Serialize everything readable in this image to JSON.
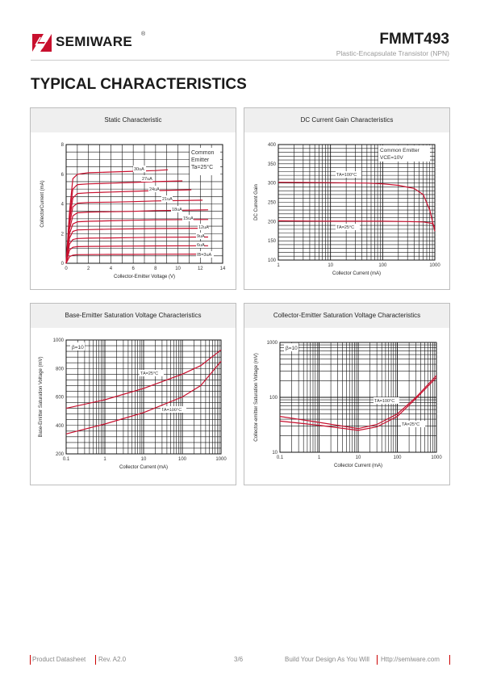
{
  "header": {
    "brand": "SEMIWARE",
    "registered": "®",
    "part_number": "FMMT493",
    "description": "Plastic-Encapsulate Transistor (NPN)"
  },
  "section_title": "TYPICAL CHARACTERISTICS",
  "colors": {
    "brand_red": "#c8102e",
    "curve_red": "#c8102e",
    "panel_header": "#efefef"
  },
  "chart_data": [
    {
      "type": "line",
      "title": "Static Characteristic",
      "xlabel": "Collector-Emitter Voltage (V)",
      "ylabel": "CollectorCurrent (mA)",
      "xlim": [
        0,
        14
      ],
      "ylim": [
        0,
        8
      ],
      "x_ticks": [
        "0",
        "2",
        "4",
        "6",
        "8",
        "10",
        "12",
        "14"
      ],
      "y_ticks": [
        "0",
        "2",
        "4",
        "6",
        "8"
      ],
      "annotation": [
        "Common",
        "Emitter",
        "Ta=25°C"
      ],
      "series": [
        {
          "name": "30uA",
          "x": [
            0,
            0.3,
            0.6,
            1.0,
            2,
            4,
            6,
            8,
            9.1
          ],
          "values": [
            0,
            3.5,
            5.7,
            6.0,
            6.1,
            6.15,
            6.2,
            6.25,
            6.3
          ]
        },
        {
          "name": "27uA",
          "x": [
            0,
            0.3,
            0.6,
            1.0,
            2,
            4,
            6,
            8,
            10.4
          ],
          "values": [
            0,
            3.2,
            5.0,
            5.3,
            5.35,
            5.4,
            5.45,
            5.5,
            5.55
          ]
        },
        {
          "name": "24uA",
          "x": [
            0,
            0.3,
            0.6,
            1.0,
            2,
            4,
            6,
            8,
            11.2
          ],
          "values": [
            0,
            2.9,
            4.4,
            4.7,
            4.75,
            4.8,
            4.85,
            4.9,
            4.95
          ]
        },
        {
          "name": "21uA",
          "x": [
            0,
            0.3,
            0.6,
            1.0,
            2,
            4,
            6,
            8,
            12.2
          ],
          "values": [
            0,
            2.6,
            3.8,
            4.05,
            4.1,
            4.12,
            4.15,
            4.2,
            4.25
          ]
        },
        {
          "name": "18uA",
          "x": [
            0,
            0.3,
            0.6,
            1.0,
            2,
            4,
            6,
            8,
            12.7
          ],
          "values": [
            0,
            2.3,
            3.2,
            3.4,
            3.45,
            3.47,
            3.5,
            3.55,
            3.6
          ]
        },
        {
          "name": "15uA",
          "x": [
            0,
            0.3,
            0.6,
            1.0,
            2,
            4,
            6,
            8,
            12.7
          ],
          "values": [
            0,
            2.0,
            2.65,
            2.8,
            2.83,
            2.86,
            2.9,
            2.93,
            2.95
          ]
        },
        {
          "name": "12uA",
          "x": [
            0,
            0.3,
            0.6,
            1.0,
            2,
            4,
            6,
            8,
            12.7
          ],
          "values": [
            0,
            1.7,
            2.15,
            2.25,
            2.27,
            2.3,
            2.32,
            2.34,
            2.36
          ]
        },
        {
          "name": "9uA",
          "x": [
            0,
            0.3,
            0.6,
            1.0,
            2,
            4,
            6,
            8,
            12.7
          ],
          "values": [
            0,
            1.3,
            1.6,
            1.67,
            1.69,
            1.71,
            1.73,
            1.75,
            1.77
          ]
        },
        {
          "name": "6uA",
          "x": [
            0,
            0.3,
            0.6,
            1.0,
            2,
            4,
            6,
            8,
            12.7
          ],
          "values": [
            0,
            0.9,
            1.08,
            1.12,
            1.14,
            1.15,
            1.16,
            1.17,
            1.18
          ]
        },
        {
          "name": "IB=3uA",
          "x": [
            0,
            0.3,
            0.6,
            1.0,
            2,
            4,
            6,
            8,
            12.7
          ],
          "values": [
            0,
            0.45,
            0.55,
            0.58,
            0.59,
            0.6,
            0.6,
            0.61,
            0.62
          ]
        }
      ]
    },
    {
      "type": "line",
      "title": "DC Current Gain Characteristics",
      "xlabel": "Collector Current (mA)",
      "ylabel": "DC Current Gain",
      "x_scale": "log",
      "xlim": [
        1,
        1000
      ],
      "ylim": [
        100,
        400
      ],
      "x_ticks": [
        "1",
        "10",
        "100",
        "1000"
      ],
      "y_ticks": [
        "100",
        "150",
        "200",
        "250",
        "300",
        "350",
        "400"
      ],
      "annotation": [
        "Common Emitter",
        "VCE=10V"
      ],
      "series": [
        {
          "name": "TA=100°C",
          "x": [
            1,
            10,
            50,
            100,
            200,
            400,
            600,
            800,
            1000
          ],
          "values": [
            302,
            301,
            300,
            298,
            294,
            286,
            270,
            230,
            175
          ]
        },
        {
          "name": "TA=25°C",
          "x": [
            1,
            10,
            100,
            300,
            600,
            900,
            1000
          ],
          "values": [
            202,
            201,
            201,
            200,
            199,
            195,
            185
          ]
        }
      ]
    },
    {
      "type": "line",
      "title": "Base-Emitter Saturation Voltage Characteristics",
      "xlabel": "Collector Current (mA)",
      "ylabel": "Base-Emitter Saturation Voltage (mV)",
      "x_scale": "log",
      "xlim": [
        0.1,
        1000
      ],
      "ylim": [
        200,
        1000
      ],
      "x_ticks": [
        "0.1",
        "1",
        "10",
        "100",
        "1000"
      ],
      "y_ticks": [
        "200",
        "400",
        "600",
        "800",
        "1000"
      ],
      "annotation": [
        "β=10"
      ],
      "series": [
        {
          "name": "TA=25°C",
          "x": [
            0.1,
            1,
            10,
            100,
            300,
            1000
          ],
          "values": [
            520,
            580,
            660,
            760,
            820,
            930
          ]
        },
        {
          "name": "TA=100°C",
          "x": [
            0.1,
            1,
            10,
            100,
            300,
            1000
          ],
          "values": [
            340,
            410,
            490,
            600,
            680,
            850
          ]
        }
      ]
    },
    {
      "type": "line",
      "title": "Collector-Emitter Saturation Voltage Characteristics",
      "xlabel": "Collector Current (mA)",
      "ylabel": "Collector-emitter Saturation Voltage (mV)",
      "x_scale": "log",
      "y_scale": "log",
      "xlim": [
        0.1,
        1000
      ],
      "ylim": [
        10,
        1000
      ],
      "x_ticks": [
        "0.1",
        "1",
        "10",
        "100",
        "1000"
      ],
      "y_ticks": [
        "10",
        "100",
        "1000"
      ],
      "annotation": [
        "β=10"
      ],
      "series": [
        {
          "name": "TA=100°C",
          "x": [
            0.1,
            1,
            10,
            30,
            100,
            300,
            1000
          ],
          "values": [
            45,
            35,
            27,
            32,
            50,
            100,
            250
          ]
        },
        {
          "name": "TA=25°C",
          "x": [
            0.1,
            1,
            10,
            30,
            100,
            300,
            1000
          ],
          "values": [
            37,
            31,
            25,
            29,
            45,
            95,
            230
          ]
        }
      ]
    }
  ],
  "footer": {
    "left": "Product Datasheet",
    "rev": "Rev. A2.0",
    "page": "3/6",
    "slogan": "Build Your Design As You Will",
    "url": "Http://semiware.com"
  }
}
